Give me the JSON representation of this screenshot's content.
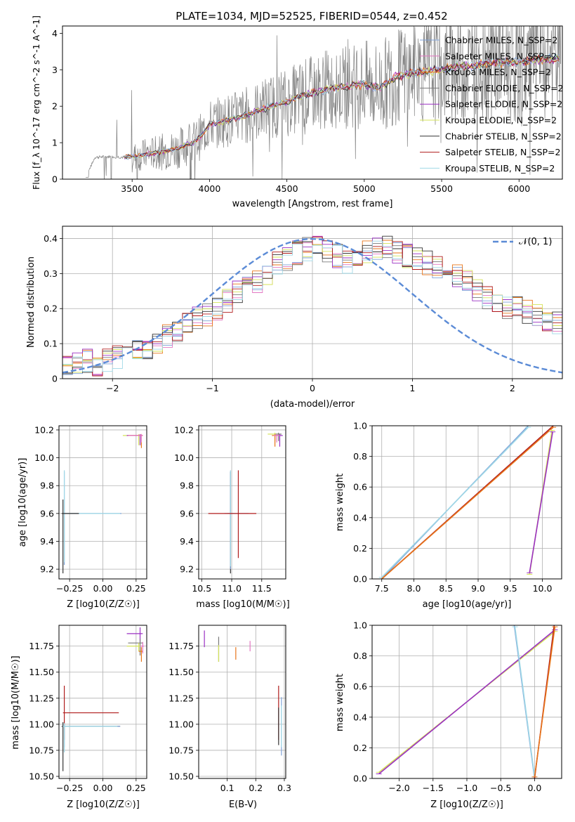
{
  "figure": {
    "title": "PLATE=1034, MJD=52525, FIBERID=0544, z=0.452"
  },
  "colors": {
    "Chabrier MILES": "#7fa3d9",
    "Salpeter MILES": "#e377c2",
    "Kroupa MILES": "#e8761a",
    "Chabrier ELODIE": "#7a7a7a",
    "Salpeter ELODIE": "#9b30c4",
    "Kroupa ELODIE": "#d4e35a",
    "Chabrier STELIB": "#333333",
    "Salpeter STELIB": "#b01c1c",
    "Kroupa STELIB": "#9fd8e6",
    "normal_curve": "#5b8bd6",
    "spectrum_data": "#808080"
  },
  "chart_data": [
    {
      "id": "spectrum",
      "type": "line",
      "xlabel": "wavelength [Angstrom, rest frame]",
      "ylabel": "Flux [f_λ 10^-17 erg cm^-2 s^-1 A^-1]",
      "xticks": [
        3500,
        4000,
        4500,
        5000,
        5500,
        6000
      ],
      "yticks": [
        0,
        1,
        2,
        3,
        4
      ],
      "xlim": [
        3050,
        6280
      ],
      "ylim": [
        0,
        4.2
      ],
      "grid": false,
      "legend_position": "right",
      "legend": [
        "Chabrier MILES, N_SSP=2",
        "Salpeter MILES, N_SSP=2",
        "Kroupa MILES, N_SSP=2",
        "Chabrier ELODIE, N_SSP=2",
        "Salpeter ELODIE, N_SSP=2",
        "Kroupa ELODIE, N_SSP=2",
        "Chabrier STELIB, N_SSP=2",
        "Salpeter STELIB, N_SSP=2",
        "Kroupa STELIB, N_SSP=2"
      ],
      "model_x": [
        3200,
        3260,
        3350,
        3450,
        3500,
        3550,
        3600,
        3650,
        3700,
        3750,
        3800,
        3850,
        3900,
        3950,
        4000,
        4100,
        4200,
        4300,
        4400,
        4500,
        4600,
        4700,
        4800,
        4900,
        5000,
        5100,
        5200,
        5300,
        5400,
        5500,
        5600,
        5700,
        5800,
        5900,
        6000,
        6100,
        6200,
        6260
      ],
      "model_y": [
        0.05,
        0.6,
        0.62,
        0.6,
        0.62,
        0.64,
        0.7,
        0.72,
        0.75,
        0.8,
        0.85,
        0.95,
        1.0,
        1.2,
        1.5,
        1.6,
        1.7,
        1.85,
        2.0,
        2.1,
        2.3,
        2.4,
        2.5,
        2.55,
        2.6,
        2.5,
        2.8,
        2.9,
        2.95,
        3.0,
        3.1,
        3.1,
        3.2,
        3.2,
        3.2,
        3.25,
        3.3,
        3.3
      ]
    },
    {
      "id": "residuals",
      "type": "line",
      "xlabel": "(data-model)/error",
      "ylabel": "Normed distribution",
      "xticks": [
        -2,
        -1,
        0,
        1,
        2
      ],
      "yticks": [
        0.0,
        0.1,
        0.2,
        0.3,
        0.4
      ],
      "xlim": [
        -2.5,
        2.5
      ],
      "ylim": [
        0,
        0.435
      ],
      "grid": true,
      "legend_position": "upper right",
      "legend": [
        "𝒩(0, 1)"
      ],
      "bin_edges_start": -2.5,
      "bin_width": 0.1,
      "hist_base": [
        0.03,
        0.04,
        0.05,
        0.04,
        0.05,
        0.06,
        0.07,
        0.08,
        0.09,
        0.1,
        0.12,
        0.14,
        0.16,
        0.17,
        0.18,
        0.2,
        0.22,
        0.25,
        0.26,
        0.28,
        0.3,
        0.33,
        0.34,
        0.36,
        0.37,
        0.38,
        0.36,
        0.35,
        0.33,
        0.34,
        0.36,
        0.37,
        0.38,
        0.36,
        0.35,
        0.34,
        0.33,
        0.32,
        0.3,
        0.29,
        0.28,
        0.25,
        0.23,
        0.22,
        0.2,
        0.2,
        0.19,
        0.18,
        0.17,
        0.16,
        0.15,
        0.13,
        0.12,
        0.11,
        0.1,
        0.09,
        0.08,
        0.07,
        0.06,
        0.05
      ]
    },
    {
      "id": "age-vs-Z",
      "type": "scatter",
      "xlabel": "Z [log10(Z/Z☉)]",
      "ylabel": "age  [log10(age/yr)]",
      "xticks": [
        "-0.25",
        "0.00",
        "0.25"
      ],
      "yticks": [
        "9.2",
        "9.4",
        "9.6",
        "9.8",
        "10.0",
        "10.2"
      ],
      "xlim": [
        -0.33,
        0.33
      ],
      "ylim": [
        9.13,
        10.23
      ],
      "grid": true
    },
    {
      "id": "age-vs-mass",
      "type": "scatter",
      "xlabel": "mass [log10(M/M☉)]",
      "ylabel": "",
      "xticks": [
        "10.5",
        "11.0",
        "11.5"
      ],
      "yticks": [
        "9.2",
        "9.4",
        "9.6",
        "9.8",
        "10.0",
        "10.2"
      ],
      "xlim": [
        10.45,
        11.9
      ],
      "ylim": [
        9.13,
        10.23
      ],
      "grid": true
    },
    {
      "id": "weight-vs-age",
      "type": "line",
      "xlabel": "age  [log10(age/yr)]",
      "ylabel": "mass weight",
      "xticks": [
        "7.5",
        "8.0",
        "8.5",
        "9.0",
        "9.5",
        "10.0"
      ],
      "yticks": [
        "0.0",
        "0.2",
        "0.4",
        "0.6",
        "0.8",
        "1.0"
      ],
      "xlim": [
        7.35,
        10.3
      ],
      "ylim": [
        0,
        1
      ],
      "grid": true,
      "lines": [
        {
          "name": "Chabrier MILES",
          "x": [
            7.5,
            9.78
          ],
          "y": [
            0.0,
            1.0
          ]
        },
        {
          "name": "Kroupa STELIB",
          "x": [
            7.5,
            9.78
          ],
          "y": [
            0.01,
            0.99
          ]
        },
        {
          "name": "Salpeter STELIB",
          "x": [
            7.5,
            10.17
          ],
          "y": [
            0.0,
            1.0
          ]
        },
        {
          "name": "Kroupa MILES",
          "x": [
            7.5,
            10.17
          ],
          "y": [
            0.0,
            0.99
          ]
        },
        {
          "name": "Kroupa ELODIE",
          "x": [
            9.8,
            10.15
          ],
          "y": [
            0.03,
            0.97
          ]
        },
        {
          "name": "Salpeter ELODIE",
          "x": [
            9.8,
            10.16
          ],
          "y": [
            0.04,
            0.96
          ]
        }
      ]
    },
    {
      "id": "mass-vs-Z",
      "type": "scatter",
      "xlabel": "Z [log10(Z/Z☉)]",
      "ylabel": "mass [log10(M/M☉)]",
      "xticks": [
        "-0.25",
        "0.00",
        "0.25"
      ],
      "yticks": [
        "10.50",
        "10.75",
        "11.00",
        "11.25",
        "11.50",
        "11.75"
      ],
      "xlim": [
        -0.33,
        0.33
      ],
      "ylim": [
        10.48,
        11.95
      ],
      "grid": true
    },
    {
      "id": "mass-vs-EBV",
      "type": "scatter",
      "xlabel": "E(B-V)",
      "ylabel": "",
      "xticks": [
        "0.1",
        "0.2",
        "0.3"
      ],
      "yticks": [
        "10.50",
        "10.75",
        "11.00",
        "11.25",
        "11.50",
        "11.75"
      ],
      "xlim": [
        0.0,
        0.305
      ],
      "ylim": [
        10.48,
        11.95
      ],
      "grid": true,
      "points": [
        {
          "name": "Salpeter ELODIE",
          "x": 0.02,
          "y": 11.82,
          "err": 0.08
        },
        {
          "name": "Chabrier ELODIE",
          "x": 0.07,
          "y": 11.72,
          "err": 0.12
        },
        {
          "name": "Kroupa ELODIE",
          "x": 0.07,
          "y": 11.68,
          "err": 0.08
        },
        {
          "name": "Kroupa MILES",
          "x": 0.13,
          "y": 11.68,
          "err": 0.06
        },
        {
          "name": "Salpeter MILES",
          "x": 0.18,
          "y": 11.75,
          "err": 0.05
        },
        {
          "name": "Salpeter STELIB",
          "x": 0.28,
          "y": 11.11,
          "err": 0.26
        },
        {
          "name": "Chabrier STELIB",
          "x": 0.28,
          "y": 10.98,
          "err": 0.18
        },
        {
          "name": "Chabrier MILES",
          "x": 0.29,
          "y": 10.98,
          "err": 0.28
        },
        {
          "name": "Kroupa STELIB",
          "x": 0.29,
          "y": 10.98,
          "err": 0.2
        }
      ]
    },
    {
      "id": "weight-vs-Z",
      "type": "line",
      "xlabel": "Z [log10(Z/Z☉)]",
      "ylabel": "mass weight",
      "xticks": [
        "-2.0",
        "-1.5",
        "-1.0",
        "-0.5",
        "0.0"
      ],
      "yticks": [
        "0.0",
        "0.2",
        "0.4",
        "0.6",
        "0.8",
        "1.0"
      ],
      "xlim": [
        -2.4,
        0.4
      ],
      "ylim": [
        0,
        1
      ],
      "grid": true,
      "lines": [
        {
          "name": "Kroupa ELODIE",
          "x": [
            -2.3,
            0.3
          ],
          "y": [
            0.04,
            0.96
          ]
        },
        {
          "name": "Salpeter ELODIE",
          "x": [
            -2.3,
            0.3
          ],
          "y": [
            0.03,
            0.97
          ]
        },
        {
          "name": "Chabrier MILES",
          "x": [
            -0.3,
            0.0
          ],
          "y": [
            1.0,
            0.0
          ]
        },
        {
          "name": "Kroupa STELIB",
          "x": [
            -0.29,
            0.0
          ],
          "y": [
            0.99,
            0.01
          ]
        },
        {
          "name": "Salpeter STELIB",
          "x": [
            0.0,
            0.29
          ],
          "y": [
            0.0,
            1.0
          ]
        },
        {
          "name": "Kroupa MILES",
          "x": [
            0.0,
            0.3
          ],
          "y": [
            0.01,
            0.99
          ]
        }
      ]
    }
  ]
}
